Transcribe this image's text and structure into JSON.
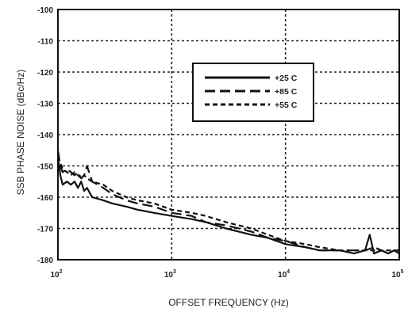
{
  "chart_data": {
    "type": "line",
    "title": "",
    "xlabel": "OFFSET FREQUENCY (Hz)",
    "ylabel": "SSB PHASE NOISE (dBc/Hz)",
    "x_scale": "log",
    "xlim": [
      100,
      100000
    ],
    "ylim": [
      -180,
      -100
    ],
    "grid": true,
    "legend_position": "upper-middle",
    "x_ticks": [
      {
        "value": 100,
        "base": "10",
        "exp": "2"
      },
      {
        "value": 1000,
        "base": "10",
        "exp": "3"
      },
      {
        "value": 10000,
        "base": "10",
        "exp": "4"
      },
      {
        "value": 100000,
        "base": "10",
        "exp": "5"
      }
    ],
    "y_ticks": [
      {
        "value": -100,
        "label": "-100"
      },
      {
        "value": -110,
        "label": "-110"
      },
      {
        "value": -120,
        "label": "-120"
      },
      {
        "value": -130,
        "label": "-130"
      },
      {
        "value": -140,
        "label": "-140"
      },
      {
        "value": -150,
        "label": "-150"
      },
      {
        "value": -160,
        "label": "-160"
      },
      {
        "value": -170,
        "label": "-170"
      },
      {
        "value": -180,
        "label": "-180"
      }
    ],
    "series": [
      {
        "name": "+25 C",
        "dash": "solid",
        "x": [
          100,
          105,
          110,
          120,
          130,
          140,
          150,
          160,
          170,
          180,
          200,
          250,
          300,
          400,
          500,
          700,
          1000,
          1500,
          2000,
          3000,
          5000,
          7000,
          10000,
          15000,
          20000,
          30000,
          40000,
          50000,
          55000,
          60000,
          70000,
          80000,
          90000,
          100000
        ],
        "y": [
          -147,
          -153,
          -156,
          -155,
          -156,
          -155,
          -157,
          -155,
          -158,
          -157,
          -160,
          -161,
          -162,
          -163,
          -164,
          -165,
          -166,
          -167,
          -168,
          -170,
          -172,
          -173,
          -175,
          -176,
          -177,
          -177,
          -178,
          -177,
          -172,
          -178,
          -177,
          -178,
          -177,
          -178
        ]
      },
      {
        "name": "+85 C",
        "dash": "long-dash",
        "x": [
          100,
          105,
          110,
          120,
          130,
          140,
          150,
          160,
          170,
          180,
          200,
          250,
          300,
          400,
          500,
          700,
          1000,
          1500,
          2000,
          3000,
          5000,
          7000,
          10000,
          15000,
          20000,
          30000,
          40000,
          50000,
          60000,
          70000,
          80000,
          90000,
          100000
        ],
        "y": [
          -145,
          -150,
          -152,
          -151,
          -152,
          -153,
          -152,
          -154,
          -153,
          -150,
          -155,
          -157,
          -159,
          -161,
          -162,
          -163,
          -165,
          -166,
          -168,
          -169,
          -171,
          -173,
          -174,
          -176,
          -177,
          -177,
          -177,
          -177,
          -176,
          -177,
          -178,
          -177,
          -177
        ]
      },
      {
        "name": "+55 C",
        "dash": "short-dash",
        "x": [
          100,
          110,
          120,
          130,
          140,
          150,
          160,
          170,
          180,
          200,
          250,
          300,
          400,
          500,
          700,
          1000,
          1500,
          2000,
          3000,
          5000,
          7000,
          10000,
          15000,
          20000,
          30000,
          40000,
          50000,
          60000,
          70000,
          80000,
          90000,
          100000
        ],
        "y": [
          -147,
          -151,
          -152,
          -153,
          -152,
          -153,
          -154,
          -153,
          -154,
          -155,
          -156,
          -158,
          -160,
          -161,
          -162,
          -164,
          -165,
          -166,
          -168,
          -170,
          -172,
          -174,
          -175,
          -176,
          -177,
          -177,
          -177,
          -177,
          -177,
          -177,
          -177,
          -177
        ]
      }
    ]
  }
}
